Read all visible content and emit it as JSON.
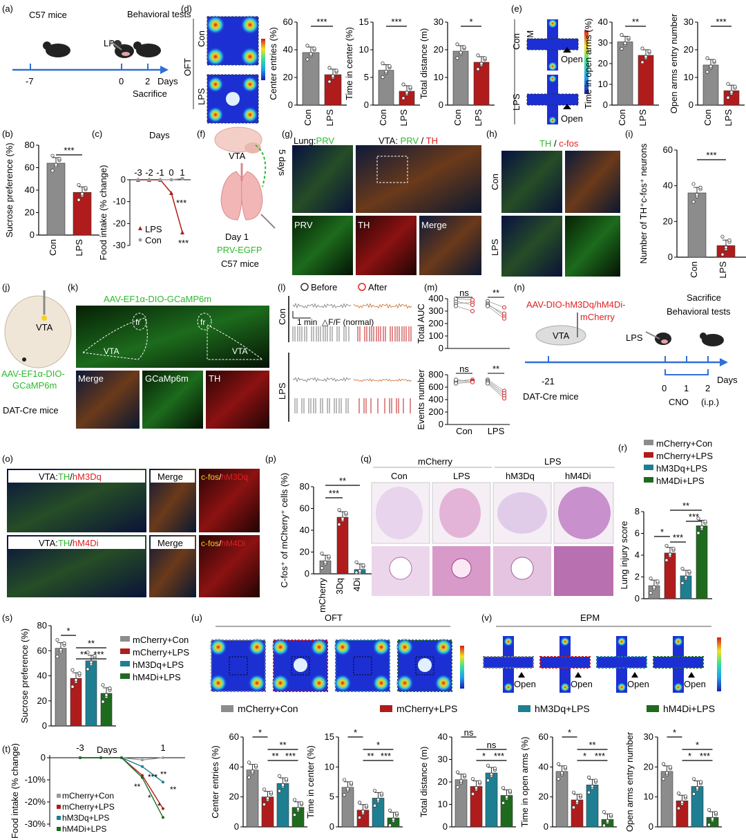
{
  "panels": {
    "a": "(a)",
    "b": "(b)",
    "c": "(c)",
    "d": "(d)",
    "e": "(e)",
    "f": "(f)",
    "g": "(g)",
    "h": "(h)",
    "i": "(i)",
    "j": "(j)",
    "k": "(k)",
    "l": "(l)",
    "m": "(m)",
    "n": "(n)",
    "o": "(o)",
    "p": "(p)",
    "q": "(q)",
    "r": "(r)",
    "s": "(s)",
    "t": "(t)",
    "u": "(u)",
    "v": "(v)"
  },
  "colors": {
    "grey": "#8c8c8c",
    "red": "#b01c1c",
    "teal": "#1e7f92",
    "green": "#1e6b1e",
    "accent_green": "#2db82d",
    "accent_red": "#e02020",
    "timeline": "#2f6fd6"
  },
  "a": {
    "c57": "C57 mice",
    "lps": "LPS",
    "behav": "Behavioral tests",
    "days": "Days",
    "sacrifice": "Sacrifice",
    "ticks": [
      "-7",
      "0",
      "2"
    ]
  },
  "d": {
    "oft": "OFT",
    "con": "Con",
    "lps": "LPS",
    "charts": [
      {
        "ylabel": "Center entries (%)",
        "ticks": [
          "0",
          "20",
          "40",
          "60"
        ],
        "values": [
          38,
          22
        ],
        "sig": "***"
      },
      {
        "ylabel": "Time in center (%)",
        "ticks": [
          "0",
          "5",
          "10",
          "15"
        ],
        "values": [
          6.3,
          2.5
        ],
        "sig": "***"
      },
      {
        "ylabel": "Total distance (m)",
        "ticks": [
          "0",
          "10",
          "20",
          "30"
        ],
        "values": [
          19.5,
          15.5
        ],
        "sig": "*"
      }
    ]
  },
  "e": {
    "epm": "EPM",
    "con": "Con",
    "lps": "LPS",
    "open": "Open",
    "charts": [
      {
        "ylabel": "Time in open arms (%)",
        "ticks": [
          "0",
          "10",
          "20",
          "30",
          "40"
        ],
        "values": [
          30.5,
          24
        ],
        "sig": "**"
      },
      {
        "ylabel": "Open arms entry number",
        "ticks": [
          "0",
          "10",
          "20",
          "30"
        ],
        "values": [
          14.5,
          5.2
        ],
        "sig": "***"
      }
    ]
  },
  "b": {
    "ylabel": "Sucrose preference (%)",
    "ticks": [
      "0",
      "20",
      "40",
      "60",
      "80"
    ],
    "values": [
      64,
      38
    ],
    "sig": "***",
    "cats": [
      "Con",
      "LPS"
    ]
  },
  "c": {
    "title": "Days",
    "ylabel": "Food intake (% change)",
    "xticks": [
      "-3",
      "-2",
      "-1",
      "0",
      "1"
    ],
    "yticks": [
      "0",
      "-10",
      "-20",
      "-30"
    ],
    "legend": [
      "LPS",
      "Con"
    ],
    "sig": [
      "***",
      "***"
    ]
  },
  "f": {
    "vta": "VTA",
    "days": "5 days",
    "day1": "Day 1",
    "prv": "PRV-EGFP",
    "mice": "C57 mice"
  },
  "g": {
    "lung": "Lung:",
    "prv": "PRV",
    "vta": "VTA: ",
    "prv2": "PRV",
    "slash": " / ",
    "th": "TH",
    "prv3": "PRV",
    "th2": "TH",
    "merge": "Merge"
  },
  "h": {
    "th": "TH",
    "slash": " / ",
    "cfos": "c-fos",
    "con": "Con",
    "lps": "LPS"
  },
  "i": {
    "ylabel": "Number of TH⁺c-fos⁺ neurons",
    "ticks": [
      "0",
      "20",
      "40",
      "60"
    ],
    "values": [
      36,
      6.5
    ],
    "sig": "***",
    "cats": [
      "Con",
      "LPS"
    ]
  },
  "j": {
    "vta": "VTA",
    "virus": "AAV-EF1α-DIO-GCaMP6m",
    "mice": "DAT-Cre mice"
  },
  "k": {
    "title": "AAV-EF1α-DIO-GCaMP6m",
    "fr": "fr",
    "vta": "VTA",
    "merge": "Merge",
    "gcamp": "GCaMp6m",
    "th": "TH"
  },
  "l": {
    "before": "Before",
    "after": "After",
    "con": "Con",
    "lps": "LPS",
    "scale": "1 min",
    "dff": "△F/F (normal)"
  },
  "m": {
    "ylabel1": "Total AUC",
    "ylabel2": "Events number",
    "ticks1": [
      "0",
      "100",
      "200",
      "300",
      "400"
    ],
    "ticks2": [
      "0",
      "200",
      "400",
      "600",
      "800"
    ],
    "ns": "ns",
    "sig": "**",
    "cats": [
      "Con",
      "LPS"
    ]
  },
  "n": {
    "virus": "AAV-DIO-hM3Dq/hM4Di-",
    "virus2": "mCherry",
    "vta": "VTA",
    "lps": "LPS",
    "sac": "Sacrifice",
    "behav": "Behavioral tests",
    "mice": "DAT-Cre mice",
    "days": "Days",
    "cno": "CNO",
    "ip": "(i.p.)",
    "ticks": [
      "-21",
      "0",
      "1",
      "2"
    ]
  },
  "o": {
    "t1": "VTA:",
    "th": "TH",
    "s": "/",
    "hm3": "hM3Dq",
    "hm4": "hM4Di",
    "merge": "Merge",
    "cfos": "c-fos",
    "slash": "/"
  },
  "p": {
    "ylabel": "C-fos⁺ of mCherry⁺ cells (%)",
    "ticks": [
      "0",
      "20",
      "40",
      "60",
      "80"
    ],
    "cats": [
      "mCherry",
      "3Dq",
      "4Di"
    ],
    "values": [
      12,
      52,
      4
    ],
    "sig": [
      "***",
      "**"
    ]
  },
  "q": {
    "mcherry": "mCherry",
    "lps": "LPS",
    "cols": [
      "Con",
      "LPS",
      "hM3Dq",
      "hM4Di"
    ]
  },
  "r": {
    "ylabel": "Lung injury score",
    "ticks": [
      "0",
      "2",
      "4",
      "6",
      "8"
    ],
    "values": [
      1.2,
      4.2,
      2.1,
      6.7
    ],
    "legend": [
      "mCherry+Con",
      "mCherry+LPS",
      "hM3Dq+LPS",
      "hM4Di+LPS"
    ],
    "sig": [
      "*",
      "***",
      "**",
      "***"
    ]
  },
  "s": {
    "ylabel": "Sucrose preference (%)",
    "ticks": [
      "0",
      "20",
      "40",
      "60",
      "80"
    ],
    "values": [
      62,
      38,
      52,
      26
    ],
    "legend": [
      "mCherry+Con",
      "mCherry+LPS",
      "hM3Dq+LPS",
      "hM4Di+LPS"
    ],
    "sig": [
      "*",
      "**",
      "**",
      "***"
    ]
  },
  "t": {
    "title": "Days",
    "xticks": [
      "-3",
      "1"
    ],
    "ylabel": "Food intake (% change)",
    "yticks": [
      "0",
      "-10%",
      "-20%",
      "-30%"
    ],
    "legend": [
      "mCherry+Con",
      "mCherry+LPS",
      "hM3Dq+LPS",
      "hM4Di+LPS"
    ],
    "sig": [
      "**",
      "*",
      "***",
      "**",
      "**",
      "*"
    ]
  },
  "u": {
    "title": "OFT"
  },
  "v": {
    "title": "EPM",
    "open": "Open"
  },
  "legend_row": [
    "mCherry+Con",
    "mCherry+LPS",
    "hM3Dq+LPS",
    "hM4Di+LPS"
  ],
  "bottom_charts": [
    {
      "ylabel": "Center entries (%)",
      "ticks": [
        "0",
        "20",
        "40",
        "60"
      ],
      "max": 60,
      "values": [
        38,
        20,
        29,
        13
      ],
      "sig": [
        "*",
        "**",
        "**",
        "***"
      ]
    },
    {
      "ylabel": "Time in center (%)",
      "ticks": [
        "0",
        "5",
        "10",
        "15"
      ],
      "max": 15,
      "values": [
        6.6,
        2.8,
        4.8,
        1.5
      ],
      "sig": [
        "*",
        "*",
        "**",
        "***"
      ]
    },
    {
      "ylabel": "Total distance (m)",
      "ticks": [
        "0",
        "10",
        "20",
        "30",
        "40"
      ],
      "max": 40,
      "values": [
        21,
        18,
        24,
        14
      ],
      "sig": [
        "ns",
        "ns",
        "*",
        "***"
      ]
    },
    {
      "ylabel": "Time in open arms (%)",
      "ticks": [
        "0",
        "20",
        "40",
        "60"
      ],
      "max": 60,
      "values": [
        37,
        18,
        28,
        5
      ],
      "sig": [
        "*",
        "**",
        "*",
        "***"
      ]
    },
    {
      "ylabel": "Open arms entry number",
      "ticks": [
        "0",
        "10",
        "20",
        "30"
      ],
      "max": 30,
      "values": [
        18.5,
        8.7,
        13.5,
        3.2
      ],
      "sig": [
        "*",
        "*",
        "*",
        "***"
      ]
    }
  ]
}
